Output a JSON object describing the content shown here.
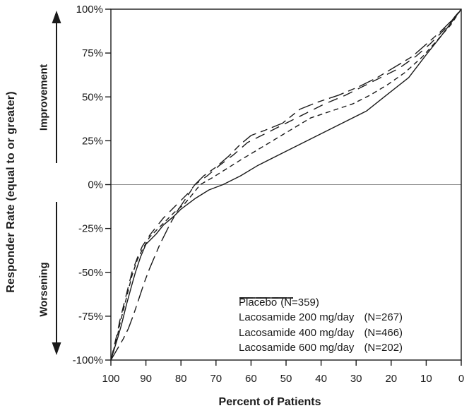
{
  "chart_data": {
    "type": "line",
    "title": "",
    "xlabel": "Percent of Patients",
    "ylabel": "Responder Rate (equal to or greater)",
    "annotations": {
      "improvement": "Improvement",
      "worsening": "Worsening"
    },
    "x_axis": {
      "ticks": [
        100,
        90,
        80,
        70,
        60,
        50,
        40,
        30,
        20,
        10,
        0
      ],
      "reversed": true,
      "range": [
        100,
        0
      ]
    },
    "y_axis": {
      "tick_values": [
        100,
        75,
        50,
        25,
        0,
        -25,
        -50,
        -75,
        -100
      ],
      "tick_labels": [
        "100%",
        "75%",
        "50%",
        "25%",
        "0%",
        "-25%",
        "-50%",
        "-75%",
        "-100%"
      ],
      "range": [
        -100,
        100
      ],
      "zero_line": true
    },
    "grid": false,
    "legend_position": "inside-bottom-right",
    "line_color": "#1a1a1a",
    "zero_line_color": "#8c8c8c",
    "series": [
      {
        "name": "Placebo",
        "n": "(N=359)",
        "dash": "",
        "points": [
          [
            100,
            -100
          ],
          [
            98,
            -87
          ],
          [
            97,
            -80
          ],
          [
            95.5,
            -68
          ],
          [
            94,
            -57
          ],
          [
            93,
            -50
          ],
          [
            91.5,
            -41
          ],
          [
            90,
            -34
          ],
          [
            87,
            -28
          ],
          [
            85,
            -23
          ],
          [
            82,
            -18
          ],
          [
            80,
            -14
          ],
          [
            76,
            -8
          ],
          [
            72,
            -3
          ],
          [
            68,
            0
          ],
          [
            63,
            5
          ],
          [
            58,
            11
          ],
          [
            50,
            19
          ],
          [
            42,
            27
          ],
          [
            34,
            35
          ],
          [
            27,
            42
          ],
          [
            22,
            50
          ],
          [
            15,
            61
          ],
          [
            10,
            74
          ],
          [
            6,
            84
          ],
          [
            3,
            92
          ],
          [
            0,
            100
          ]
        ]
      },
      {
        "name": "Lacosamide 200 mg/day",
        "n": "(N=267)",
        "dash": "7 5",
        "points": [
          [
            100,
            -100
          ],
          [
            98,
            -85
          ],
          [
            97.5,
            -80
          ],
          [
            96,
            -68
          ],
          [
            95,
            -60
          ],
          [
            94,
            -52
          ],
          [
            92.5,
            -43
          ],
          [
            91,
            -37
          ],
          [
            89,
            -30
          ],
          [
            87,
            -26
          ],
          [
            84.5,
            -21
          ],
          [
            82,
            -16
          ],
          [
            79,
            -11
          ],
          [
            76.5,
            -5
          ],
          [
            74.5,
            0
          ],
          [
            71,
            4
          ],
          [
            67,
            9
          ],
          [
            63,
            14
          ],
          [
            58,
            20
          ],
          [
            53,
            26
          ],
          [
            48,
            32
          ],
          [
            43,
            38
          ],
          [
            37,
            42
          ],
          [
            31,
            46
          ],
          [
            26,
            51
          ],
          [
            21,
            57
          ],
          [
            16,
            64
          ],
          [
            11,
            73
          ],
          [
            7,
            82
          ],
          [
            3,
            91
          ],
          [
            0,
            100
          ]
        ]
      },
      {
        "name": "Lacosamide 400 mg/day",
        "n": "(N=466)",
        "dash": "14 9",
        "points": [
          [
            100,
            -100
          ],
          [
            98,
            -83
          ],
          [
            97.5,
            -78
          ],
          [
            96,
            -66
          ],
          [
            95,
            -58
          ],
          [
            94,
            -50
          ],
          [
            92.5,
            -42
          ],
          [
            91,
            -35
          ],
          [
            89,
            -29
          ],
          [
            87,
            -24
          ],
          [
            85,
            -19
          ],
          [
            82.5,
            -14
          ],
          [
            80,
            -9
          ],
          [
            77.5,
            -4
          ],
          [
            76,
            0
          ],
          [
            72.5,
            5
          ],
          [
            69,
            11
          ],
          [
            65,
            17
          ],
          [
            61,
            24
          ],
          [
            58,
            27
          ],
          [
            54,
            31
          ],
          [
            49,
            36
          ],
          [
            44,
            41
          ],
          [
            39,
            46
          ],
          [
            33,
            51
          ],
          [
            28,
            56
          ],
          [
            23,
            61
          ],
          [
            18,
            66
          ],
          [
            13,
            73
          ],
          [
            9,
            80
          ],
          [
            5,
            88
          ],
          [
            0,
            100
          ]
        ]
      },
      {
        "name": "Lacosamide 600 mg/day",
        "n": "(N=202)",
        "dash": "22 7 10 7",
        "points": [
          [
            100,
            -100
          ],
          [
            96.5,
            -88
          ],
          [
            95,
            -82
          ],
          [
            93.5,
            -74
          ],
          [
            92,
            -65
          ],
          [
            90.5,
            -56
          ],
          [
            89,
            -48
          ],
          [
            87.5,
            -41
          ],
          [
            86,
            -34
          ],
          [
            84.5,
            -28
          ],
          [
            83,
            -22
          ],
          [
            81,
            -15
          ],
          [
            79,
            -9
          ],
          [
            77,
            -3
          ],
          [
            76,
            0
          ],
          [
            73.5,
            5
          ],
          [
            70,
            10
          ],
          [
            66.5,
            16
          ],
          [
            63,
            23
          ],
          [
            60,
            28
          ],
          [
            56,
            31
          ],
          [
            51,
            35
          ],
          [
            46,
            43
          ],
          [
            41,
            47
          ],
          [
            35,
            51
          ],
          [
            29,
            56
          ],
          [
            24,
            61
          ],
          [
            19,
            67
          ],
          [
            14,
            73
          ],
          [
            10,
            80
          ],
          [
            6,
            87
          ],
          [
            3,
            93
          ],
          [
            0,
            100
          ]
        ]
      }
    ]
  }
}
